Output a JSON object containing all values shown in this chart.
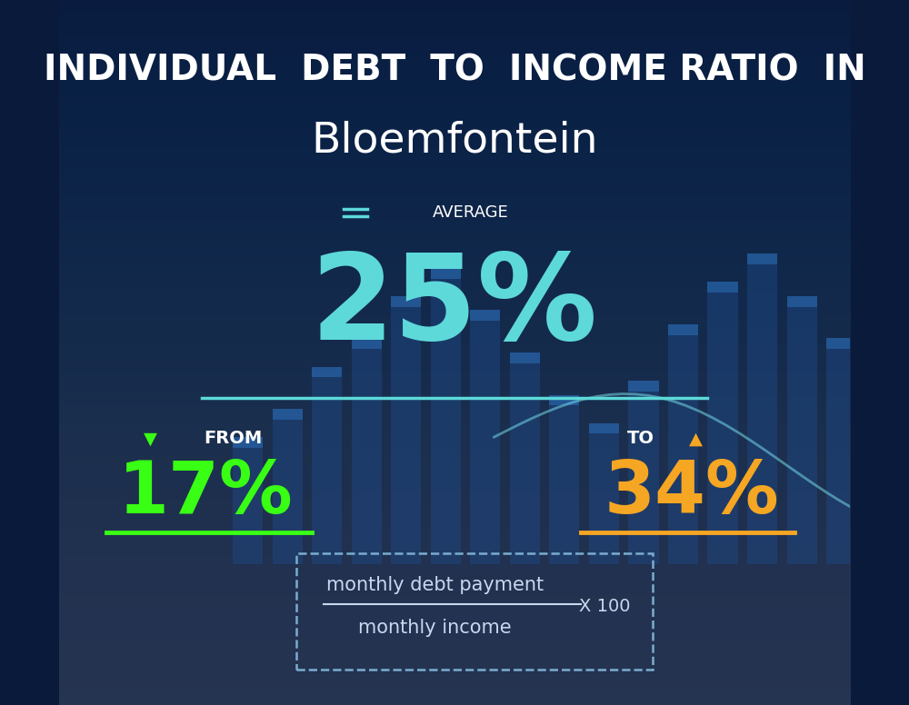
{
  "title_line1": "INDIVIDUAL  DEBT  TO  INCOME RATIO  IN",
  "title_line2": "Bloemfontein",
  "avg_label": "AVERAGE",
  "avg_value": "25%",
  "from_label": "FROM",
  "from_value": "17%",
  "to_label": "TO",
  "to_value": "34%",
  "formula_numerator": "monthly debt payment",
  "formula_denominator": "monthly income",
  "formula_multiplier": "X 100",
  "bg_color_top": "#0a1a3a",
  "bg_color_bottom": "#0d2d5a",
  "avg_color": "#5dd9d9",
  "from_color": "#39ff14",
  "to_color": "#f5a623",
  "white_color": "#ffffff",
  "divider_color": "#5dd9d9",
  "from_underline_color": "#39ff14",
  "to_underline_color": "#f5a623",
  "formula_text_color": "#c8d8f0",
  "bar_color": "#1e4a8a",
  "chart_line_color": "#7ee8f0"
}
